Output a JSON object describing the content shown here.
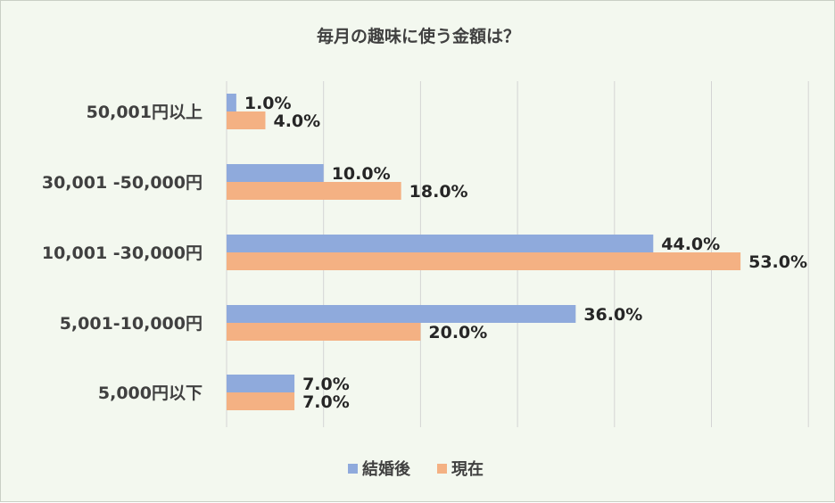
{
  "chart_data": {
    "type": "bar",
    "orientation": "horizontal",
    "title": "毎月の趣味に使う金額は？",
    "categories": [
      "50,001円以上",
      "30,001 -50,000円",
      "10,001 -30,000円",
      "5,001-10,000円",
      "5,000円以下"
    ],
    "series": [
      {
        "name": "結婚後",
        "values": [
          1.0,
          10.0,
          44.0,
          36.0,
          7.0
        ],
        "labels": [
          "1.0%",
          "10.0%",
          "44.0%",
          "36.0%",
          "7.0%"
        ],
        "color": "#8faadc"
      },
      {
        "name": "現在",
        "values": [
          4.0,
          18.0,
          53.0,
          20.0,
          7.0
        ],
        "labels": [
          "4.0%",
          "18.0%",
          "53.0%",
          "20.0%",
          "7.0%"
        ],
        "color": "#f4b183"
      }
    ],
    "xlim": [
      0,
      60
    ],
    "grid": true,
    "legend_position": "bottom",
    "background": "#f3f8ef"
  }
}
